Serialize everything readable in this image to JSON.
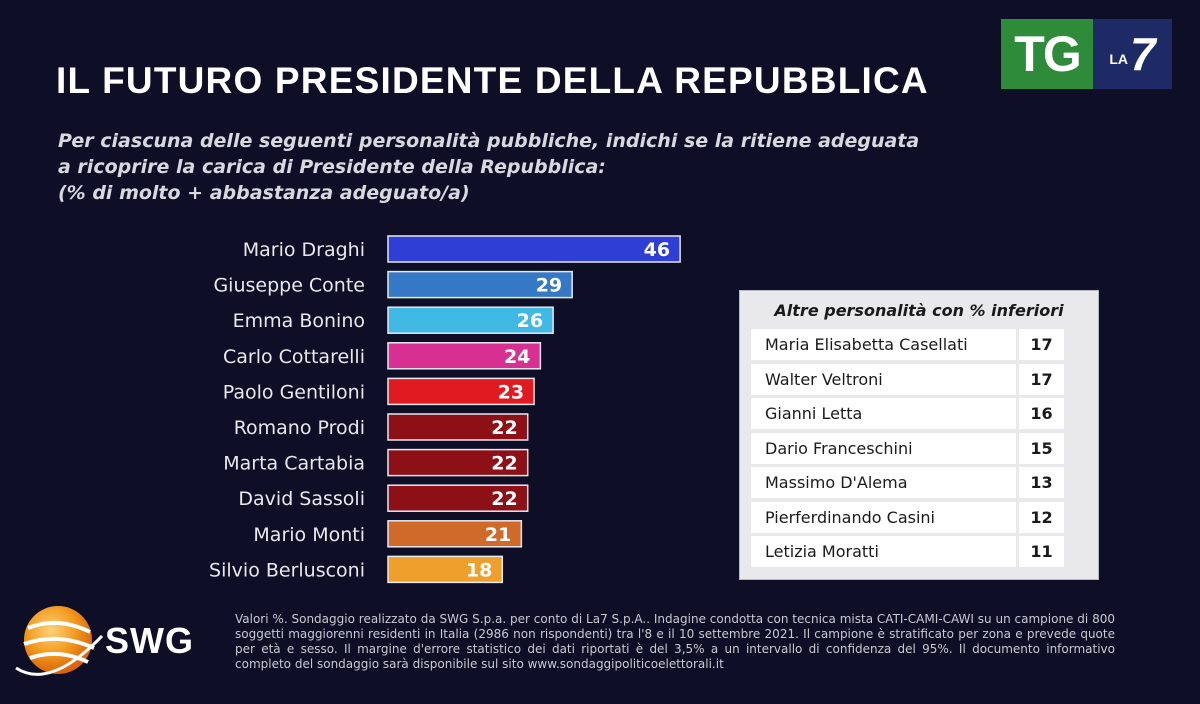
{
  "header": {
    "title": "IL FUTURO PRESIDENTE DELLA REPUBBLICA",
    "subtitle_lines": [
      "Per ciascuna delle seguenti personalità pubbliche, indichi se la ritiene adeguata",
      "a ricoprire la carica di Presidente della Repubblica:",
      "(% di molto + abbastanza adeguato/a)"
    ]
  },
  "logo": {
    "tg": "TG",
    "la": "LA",
    "seven": "7"
  },
  "chart_data": {
    "type": "bar",
    "orientation": "horizontal",
    "categories": [
      "Mario Draghi",
      "Giuseppe Conte",
      "Emma Bonino",
      "Carlo Cottarelli",
      "Paolo Gentiloni",
      "Romano Prodi",
      "Marta Cartabia",
      "David Sassoli",
      "Mario Monti",
      "Silvio Berlusconi"
    ],
    "values": [
      46,
      29,
      26,
      24,
      23,
      22,
      22,
      22,
      21,
      18
    ],
    "colors": [
      "#2f3fd6",
      "#3578c6",
      "#40b9e4",
      "#d82f93",
      "#e11a22",
      "#8c1016",
      "#8c1016",
      "#8c1016",
      "#cf6a2b",
      "#eea02c"
    ],
    "data_labels": true,
    "grid": false
  },
  "other_box": {
    "title": "Altre personalità con % inferiori",
    "rows": [
      {
        "name": "Maria Elisabetta Casellati",
        "value": "17"
      },
      {
        "name": "Walter Veltroni",
        "value": "17"
      },
      {
        "name": "Gianni Letta",
        "value": "16"
      },
      {
        "name": "Dario Franceschini",
        "value": "15"
      },
      {
        "name": "Massimo D'Alema",
        "value": "13"
      },
      {
        "name": "Pierferdinando Casini",
        "value": "12"
      },
      {
        "name": "Letizia Moratti",
        "value": "11"
      }
    ]
  },
  "footer": {
    "brand": "SWG",
    "note": "Valori %. Sondaggio realizzato da SWG S.p.a. per conto di La7 S.p.A.. Indagine condotta con tecnica mista CATI-CAMI-CAWI su un campione di 800 soggetti maggiorenni residenti in Italia (2986 non rispondenti) tra l'8 e il 10 settembre 2021. Il campione è stratificato per zona e prevede quote per età e sesso. Il margine d'errore statistico dei dati riportati è del 3,5% a un intervallo di confidenza del 95%. Il documento informativo completo del sondaggio sarà disponibile sul sito www.sondaggipoliticoelettorali.it"
  }
}
